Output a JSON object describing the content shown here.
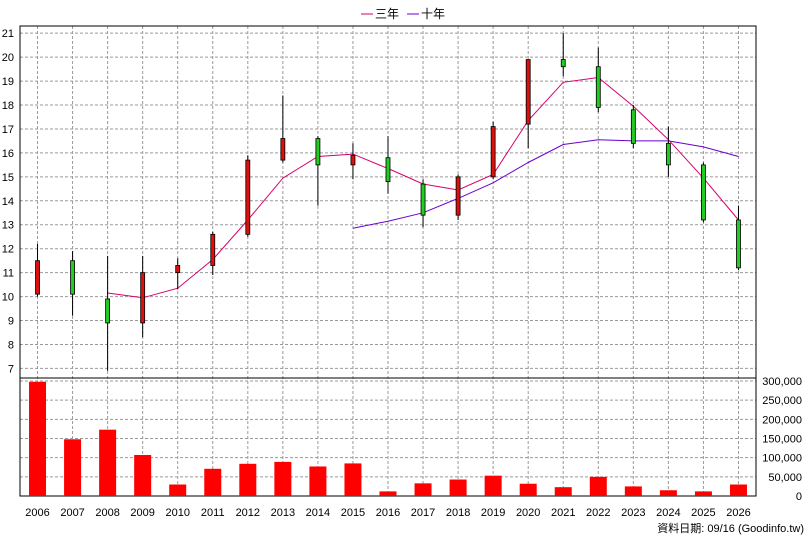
{
  "chart_data": {
    "type": "candlestick",
    "legend": [
      {
        "name": "三年",
        "color": "#d6006b"
      },
      {
        "name": "十年",
        "color": "#6a00d0"
      }
    ],
    "years": [
      "2006",
      "2007",
      "2008",
      "2009",
      "2010",
      "2011",
      "2012",
      "2013",
      "2014",
      "2015",
      "2016",
      "2017",
      "2018",
      "2019",
      "2020",
      "2021",
      "2022",
      "2023",
      "2024",
      "2025",
      "2026"
    ],
    "candles": [
      {
        "open": 10.1,
        "close": 11.5,
        "high": 12.2,
        "low": 10.0
      },
      {
        "open": 11.5,
        "close": 10.1,
        "high": 11.9,
        "low": 9.2
      },
      {
        "open": 9.9,
        "close": 8.9,
        "high": 11.7,
        "low": 6.9
      },
      {
        "open": 8.9,
        "close": 11.0,
        "high": 11.7,
        "low": 8.3
      },
      {
        "open": 11.0,
        "close": 11.3,
        "high": 11.6,
        "low": 10.3
      },
      {
        "open": 11.3,
        "close": 12.6,
        "high": 12.7,
        "low": 10.9
      },
      {
        "open": 12.6,
        "close": 15.7,
        "high": 15.9,
        "low": 12.5
      },
      {
        "open": 15.7,
        "close": 16.6,
        "high": 18.4,
        "low": 15.6
      },
      {
        "open": 16.6,
        "close": 15.5,
        "high": 16.7,
        "low": 13.8
      },
      {
        "open": 15.5,
        "close": 15.9,
        "high": 16.4,
        "low": 14.9
      },
      {
        "open": 15.8,
        "close": 14.8,
        "high": 16.7,
        "low": 14.3
      },
      {
        "open": 14.7,
        "close": 13.4,
        "high": 14.9,
        "low": 12.9
      },
      {
        "open": 13.4,
        "close": 15.0,
        "high": 15.1,
        "low": 13.2
      },
      {
        "open": 15.0,
        "close": 17.1,
        "high": 17.3,
        "low": 14.9
      },
      {
        "open": 17.2,
        "close": 19.9,
        "high": 19.9,
        "low": 16.2
      },
      {
        "open": 19.9,
        "close": 19.6,
        "high": 21.0,
        "low": 19.2
      },
      {
        "open": 19.6,
        "close": 17.9,
        "high": 20.4,
        "low": 17.7
      },
      {
        "open": 17.8,
        "close": 16.4,
        "high": 18.0,
        "low": 16.2
      },
      {
        "open": 16.4,
        "close": 15.5,
        "high": 17.1,
        "low": 15.0
      },
      {
        "open": 15.5,
        "close": 13.2,
        "high": 15.6,
        "low": 13.1
      },
      {
        "open": 13.2,
        "close": 11.2,
        "high": 13.8,
        "low": 11.1
      }
    ],
    "ma3": [
      null,
      null,
      10.15,
      9.95,
      10.35,
      11.55,
      13.2,
      14.95,
      15.85,
      15.95,
      15.35,
      14.7,
      14.45,
      15.1,
      17.35,
      18.95,
      19.15,
      17.95,
      16.55,
      14.95,
      13.2
    ],
    "ma10": [
      null,
      null,
      null,
      null,
      null,
      null,
      null,
      null,
      null,
      12.85,
      13.15,
      13.5,
      14.1,
      14.75,
      15.6,
      16.35,
      16.55,
      16.5,
      16.5,
      16.25,
      15.85
    ],
    "volume": [
      298000,
      148000,
      173000,
      107000,
      30000,
      71000,
      84000,
      89000,
      77000,
      85000,
      12000,
      33000,
      43000,
      53000,
      32000,
      23000,
      50000,
      25000,
      15000,
      12000,
      30000
    ],
    "price_ticks": [
      7,
      8,
      9,
      10,
      11,
      12,
      13,
      14,
      15,
      16,
      17,
      18,
      19,
      20,
      21
    ],
    "price_ylim": [
      6.6,
      21.3
    ],
    "volume_ticks": [
      0,
      50000,
      100000,
      150000,
      200000,
      250000,
      300000
    ],
    "volume_tick_labels": [
      "0",
      "50,000",
      "100,000",
      "150,000",
      "200,000",
      "250,000",
      "300,000"
    ],
    "volume_ylim": [
      0,
      300000
    ],
    "up_color": "#dd1010",
    "down_color": "#22cc22",
    "volume_color": "#ff0000",
    "grid": true
  },
  "source_text": "資料日期: 09/16  (Goodinfo.tw)"
}
